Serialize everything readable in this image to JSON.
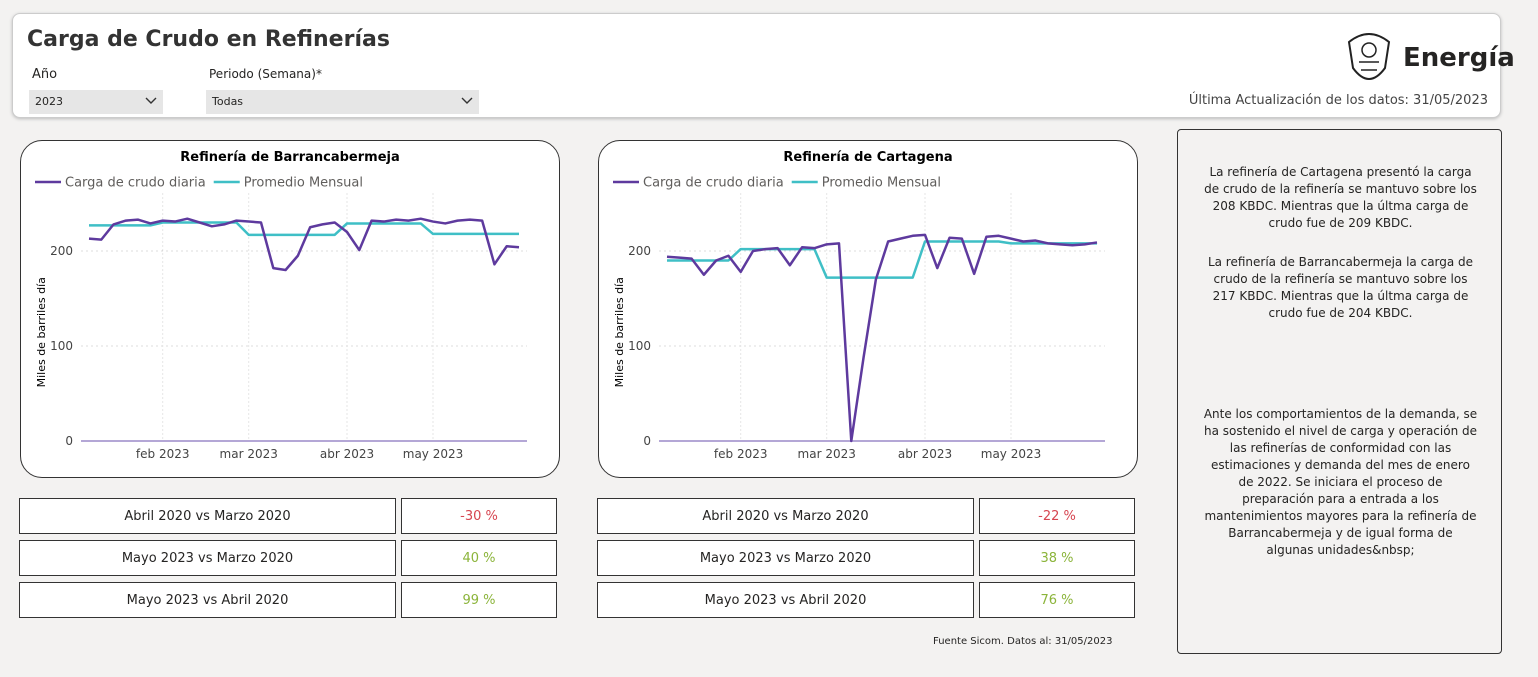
{
  "header": {
    "title": "Carga de Crudo en Refinerías",
    "brand": "Energía",
    "updated": "Última Actualización de los datos: 31/05/2023"
  },
  "filters": [
    {
      "label": "Año",
      "value": "2023"
    },
    {
      "label": "Periodo (Semana)*",
      "value": "Todas"
    }
  ],
  "chart_data": [
    {
      "type": "line",
      "title": "Refinería de Barrancabermeja",
      "y_label": "Miles de barriles día",
      "categories": [
        null,
        null,
        null,
        null,
        null,
        null,
        "feb 2023",
        null,
        null,
        null,
        null,
        null,
        null,
        "mar 2023",
        null,
        null,
        null,
        null,
        null,
        null,
        null,
        "abr 2023",
        null,
        null,
        null,
        null,
        null,
        null,
        "may 2023",
        null,
        null,
        null,
        null,
        null,
        null,
        null
      ],
      "series": [
        {
          "name": "Carga de crudo diaria",
          "color": "#5e3a9e",
          "values": [
            213,
            212,
            228,
            232,
            233,
            229,
            232,
            231,
            234,
            230,
            226,
            228,
            232,
            231,
            230,
            182,
            180,
            195,
            225,
            228,
            230,
            220,
            201,
            232,
            231,
            233,
            232,
            234,
            231,
            229,
            232,
            233,
            232,
            186,
            205,
            204
          ]
        },
        {
          "name": "Promedio Mensual",
          "color": "#3fbfc6",
          "values": [
            227,
            227,
            227,
            227,
            227,
            227,
            230,
            230,
            230,
            230,
            230,
            230,
            230,
            217,
            217,
            217,
            217,
            217,
            217,
            217,
            217,
            229,
            229,
            229,
            229,
            229,
            229,
            229,
            218,
            218,
            218,
            218,
            218,
            218,
            218,
            218
          ]
        }
      ],
      "ylim": [
        0,
        250
      ],
      "yticks": [
        0,
        100,
        200
      ],
      "grid": true,
      "legend": "top-left"
    },
    {
      "type": "line",
      "title": "Refinería de Cartagena",
      "y_label": "Miles de barriles día",
      "categories": [
        null,
        null,
        null,
        null,
        null,
        null,
        "feb 2023",
        null,
        null,
        null,
        null,
        null,
        null,
        "mar 2023",
        null,
        null,
        null,
        null,
        null,
        null,
        null,
        "abr 2023",
        null,
        null,
        null,
        null,
        null,
        null,
        "may 2023",
        null,
        null,
        null,
        null,
        null,
        null,
        null
      ],
      "series": [
        {
          "name": "Carga de crudo diaria",
          "color": "#5e3a9e",
          "values": [
            194,
            193,
            192,
            175,
            190,
            195,
            178,
            200,
            202,
            203,
            185,
            204,
            203,
            207,
            208,
            0,
            88,
            170,
            210,
            213,
            216,
            217,
            182,
            214,
            213,
            176,
            215,
            216,
            213,
            210,
            211,
            208,
            207,
            206,
            207,
            209
          ]
        },
        {
          "name": "Promedio Mensual",
          "color": "#3fbfc6",
          "values": [
            190,
            190,
            190,
            190,
            190,
            190,
            202,
            202,
            202,
            202,
            202,
            202,
            202,
            172,
            172,
            172,
            172,
            172,
            172,
            172,
            172,
            210,
            210,
            210,
            210,
            210,
            210,
            210,
            208,
            208,
            208,
            208,
            208,
            208,
            208,
            208
          ]
        }
      ],
      "ylim": [
        0,
        250
      ],
      "yticks": [
        0,
        100,
        200
      ],
      "grid": true,
      "legend": "top-left"
    }
  ],
  "comparisons": [
    [
      [
        "Abril 2020 vs Marzo 2020",
        "-30 %"
      ],
      [
        "Mayo 2023 vs Marzo 2020",
        "40 %"
      ],
      [
        "Mayo 2023 vs Abril 2020",
        "99 %"
      ]
    ],
    [
      [
        "Abril 2020 vs Marzo 2020",
        "-22 %"
      ],
      [
        "Mayo 2023 vs Marzo 2020",
        "38 %"
      ],
      [
        "Mayo 2023 vs Abril 2020",
        "76 %"
      ]
    ]
  ],
  "notes": [
    "La refinería de Cartagena presentó la carga de crudo de la refinería se mantuvo sobre los 208 KBDC. Mientras que la últma carga de crudo fue de 209 KBDC.",
    "La refinería de Barrancabermeja la carga de crudo de la refinería se mantuvo sobre los 217 KBDC. Mientras que la últma carga de crudo fue de 204 KBDC.",
    "Ante los comportamientos de la demanda, se ha sostenido el nivel de carga y operación de las refinerías de conformidad con las estimaciones y demanda del mes de enero de 2022. Se iniciara el proceso de preparación para a entrada a los mantenimientos mayores para la refinería de Barrancabermeja y de igual forma de algunas unidades&nbsp;"
  ],
  "source": "Fuente Sicom. Datos al: 31/05/2023"
}
